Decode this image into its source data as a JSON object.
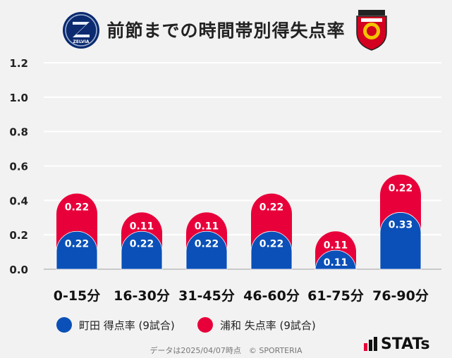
{
  "title": "前節までの時間帯別得失点率",
  "legend": [
    {
      "label": "町田 得点率 (9試合)",
      "color": "#0a50b8"
    },
    {
      "label": "浦和 失点率 (9試合)",
      "color": "#e8003a"
    }
  ],
  "footer": "データは2025/04/07時点　© SPORTERIA",
  "brand": {
    "stats": "STATs"
  },
  "logos": {
    "left_text": "ZELVIA"
  },
  "chart_data": {
    "type": "bar",
    "stacked": true,
    "categories": [
      "0-15分",
      "16-30分",
      "31-45分",
      "46-60分",
      "61-75分",
      "76-90分"
    ],
    "series": [
      {
        "name": "町田 得点率 (9試合)",
        "color": "#0a50b8",
        "values": [
          0.22,
          0.22,
          0.22,
          0.22,
          0.11,
          0.33
        ]
      },
      {
        "name": "浦和 失点率 (9試合)",
        "color": "#e8003a",
        "values": [
          0.22,
          0.11,
          0.11,
          0.22,
          0.11,
          0.22
        ]
      }
    ],
    "ylim": [
      0,
      1.2
    ],
    "yticks": [
      "0.0",
      "0.2",
      "0.4",
      "0.6",
      "0.8",
      "1.0",
      "1.2"
    ],
    "grid": true,
    "legend_position": "bottom"
  }
}
